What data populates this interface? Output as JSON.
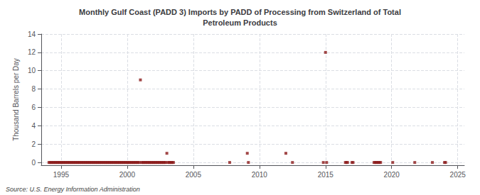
{
  "chart_data": {
    "type": "scatter",
    "title": "Monthly Gulf Coast (PADD 3) Imports by PADD of Processing from Switzerland of Total\nPetroleum Products",
    "ylabel": "Thousand Barrels per Day",
    "annotation": "Source: U.S. Energy Information Administration",
    "x": [
      1994.083,
      1994.167,
      1994.25,
      1994.333,
      1994.417,
      1994.5,
      1994.583,
      1994.667,
      1994.75,
      1994.833,
      1994.917,
      1995.0,
      1995.083,
      1995.167,
      1995.25,
      1995.333,
      1995.417,
      1995.5,
      1995.583,
      1995.667,
      1995.75,
      1995.833,
      1995.917,
      1996.0,
      1996.083,
      1996.167,
      1996.25,
      1996.333,
      1996.417,
      1996.5,
      1996.583,
      1996.667,
      1996.75,
      1996.833,
      1996.917,
      1997.0,
      1997.083,
      1997.167,
      1997.25,
      1997.333,
      1997.417,
      1997.5,
      1997.583,
      1997.667,
      1997.75,
      1997.833,
      1997.917,
      1998.0,
      1998.083,
      1998.167,
      1998.25,
      1998.333,
      1998.417,
      1998.5,
      1998.583,
      1998.667,
      1998.75,
      1998.833,
      1998.917,
      1999.0,
      1999.083,
      1999.167,
      1999.25,
      1999.333,
      1999.417,
      1999.5,
      1999.583,
      1999.667,
      1999.75,
      1999.833,
      1999.917,
      2000.0,
      2000.083,
      2000.167,
      2000.25,
      2000.333,
      2000.417,
      2000.5,
      2000.583,
      2000.667,
      2000.75,
      2000.833,
      2000.917,
      2001.0,
      2001.083,
      2001.167,
      2001.25,
      2001.333,
      2001.417,
      2001.5,
      2001.583,
      2001.667,
      2001.75,
      2001.833,
      2001.917,
      2002.0,
      2002.083,
      2002.167,
      2002.25,
      2002.333,
      2002.417,
      2002.5,
      2002.583,
      2002.667,
      2002.75,
      2002.833,
      2002.917,
      2003.0,
      2003.083,
      2003.167,
      2003.25,
      2003.333,
      2003.417,
      2003.5,
      2007.75,
      2009.083,
      2009.167,
      2012.0,
      2012.5,
      2014.833,
      2015.0,
      2015.083,
      2016.5,
      2016.583,
      2016.667,
      2017.0,
      2017.083,
      2018.667,
      2018.75,
      2018.833,
      2018.917,
      2019.0,
      2019.083,
      2019.167,
      2020.083,
      2021.75,
      2023.083,
      2024.0,
      2024.083
    ],
    "values": [
      0.0,
      0.0,
      0.0,
      0.0,
      0.0,
      0.0,
      0.0,
      0.0,
      0.0,
      0.0,
      0.0,
      0.0,
      0.0,
      0.0,
      0.0,
      0.0,
      0.0,
      0.0,
      0.0,
      0.0,
      0.0,
      0.0,
      0.0,
      0.0,
      0.0,
      0.0,
      0.0,
      0.0,
      0.0,
      0.0,
      0.0,
      0.0,
      0.0,
      0.0,
      0.0,
      0.0,
      0.0,
      0.0,
      0.0,
      0.0,
      0.0,
      0.0,
      0.0,
      0.0,
      0.0,
      0.0,
      0.0,
      0.0,
      0.0,
      0.0,
      0.0,
      0.0,
      0.0,
      0.0,
      0.0,
      0.0,
      0.0,
      0.0,
      0.0,
      0.0,
      0.0,
      0.0,
      0.0,
      0.0,
      0.0,
      0.0,
      0.0,
      0.0,
      0.0,
      0.0,
      0.0,
      0.0,
      0.0,
      0.0,
      0.0,
      0.0,
      0.0,
      0.0,
      0.0,
      0.0,
      0.0,
      0.0,
      0.0,
      9.0,
      0.0,
      0.0,
      0.0,
      0.0,
      0.0,
      0.0,
      0.0,
      0.0,
      0.0,
      0.0,
      0.0,
      0.0,
      0.0,
      0.0,
      0.0,
      0.0,
      0.0,
      0.0,
      0.0,
      0.0,
      0.0,
      0.0,
      0.0,
      1.0,
      0.0,
      0.0,
      0.0,
      0.0,
      0.0,
      0.0,
      0.0,
      1.0,
      0.0,
      1.0,
      0.0,
      0.0,
      12.0,
      0.0,
      0.0,
      0.0,
      0.0,
      0.0,
      0.0,
      0.0,
      0.0,
      0.0,
      0.0,
      0.0,
      0.0,
      0.0,
      0.0,
      0.0,
      0.0,
      0.0,
      0.0
    ],
    "color": "#8b1a1a",
    "marker": "square",
    "xlim": [
      1993.5,
      2025.5
    ],
    "xticks": [
      1995,
      2000,
      2005,
      2010,
      2015,
      2020,
      2025
    ],
    "ylim": [
      -0.3,
      14
    ],
    "yticks": [
      0,
      2,
      4,
      6,
      8,
      10,
      12,
      14
    ],
    "grid": true
  }
}
